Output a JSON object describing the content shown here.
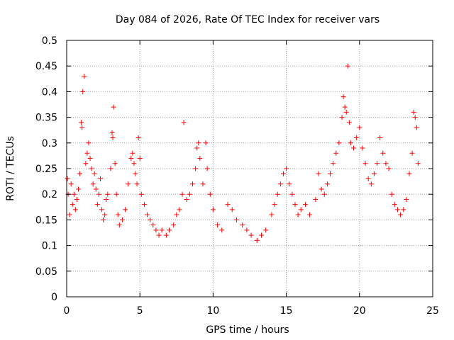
{
  "chart_data": {
    "type": "scatter",
    "title": "Day 084 of 2026, Rate Of TEC Index for receiver vars",
    "xlabel": "GPS time / hours",
    "ylabel": "ROTI / TECUs",
    "xlim": [
      0,
      25
    ],
    "ylim": [
      0,
      0.5
    ],
    "x_ticks": [
      "0",
      "5",
      "10",
      "15",
      "20",
      "25"
    ],
    "y_ticks": [
      "0",
      "0.05",
      "0.1",
      "0.15",
      "0.2",
      "0.25",
      "0.3",
      "0.35",
      "0.4",
      "0.45",
      "0.5"
    ],
    "grid": true,
    "marker": "+",
    "color": "#ff0000",
    "series": [
      {
        "points": [
          [
            0.05,
            0.23
          ],
          [
            0.1,
            0.2
          ],
          [
            0.2,
            0.16
          ],
          [
            0.3,
            0.22
          ],
          [
            0.4,
            0.18
          ],
          [
            0.5,
            0.2
          ],
          [
            0.6,
            0.17
          ],
          [
            0.7,
            0.19
          ],
          [
            0.8,
            0.21
          ],
          [
            0.9,
            0.24
          ],
          [
            1.0,
            0.34
          ],
          [
            1.05,
            0.33
          ],
          [
            1.1,
            0.4
          ],
          [
            1.2,
            0.43
          ],
          [
            1.3,
            0.26
          ],
          [
            1.4,
            0.28
          ],
          [
            1.5,
            0.3
          ],
          [
            1.6,
            0.27
          ],
          [
            1.7,
            0.25
          ],
          [
            1.8,
            0.22
          ],
          [
            1.9,
            0.24
          ],
          [
            2.0,
            0.21
          ],
          [
            2.1,
            0.18
          ],
          [
            2.2,
            0.2
          ],
          [
            2.3,
            0.23
          ],
          [
            2.4,
            0.17
          ],
          [
            2.5,
            0.15
          ],
          [
            2.6,
            0.16
          ],
          [
            2.7,
            0.19
          ],
          [
            2.8,
            0.2
          ],
          [
            3.0,
            0.25
          ],
          [
            3.1,
            0.32
          ],
          [
            3.15,
            0.31
          ],
          [
            3.2,
            0.37
          ],
          [
            3.3,
            0.26
          ],
          [
            3.4,
            0.2
          ],
          [
            3.5,
            0.16
          ],
          [
            3.6,
            0.14
          ],
          [
            3.8,
            0.15
          ],
          [
            4.0,
            0.17
          ],
          [
            4.2,
            0.22
          ],
          [
            4.4,
            0.27
          ],
          [
            4.5,
            0.28
          ],
          [
            4.6,
            0.26
          ],
          [
            4.7,
            0.24
          ],
          [
            4.8,
            0.22
          ],
          [
            4.9,
            0.31
          ],
          [
            5.0,
            0.27
          ],
          [
            5.1,
            0.2
          ],
          [
            5.3,
            0.18
          ],
          [
            5.5,
            0.16
          ],
          [
            5.7,
            0.15
          ],
          [
            5.9,
            0.14
          ],
          [
            6.1,
            0.13
          ],
          [
            6.3,
            0.12
          ],
          [
            6.5,
            0.13
          ],
          [
            6.8,
            0.12
          ],
          [
            7.0,
            0.13
          ],
          [
            7.3,
            0.14
          ],
          [
            7.5,
            0.16
          ],
          [
            7.7,
            0.17
          ],
          [
            7.9,
            0.2
          ],
          [
            8.0,
            0.34
          ],
          [
            8.2,
            0.19
          ],
          [
            8.4,
            0.2
          ],
          [
            8.6,
            0.22
          ],
          [
            8.8,
            0.25
          ],
          [
            8.9,
            0.29
          ],
          [
            9.0,
            0.3
          ],
          [
            9.1,
            0.27
          ],
          [
            9.3,
            0.22
          ],
          [
            9.5,
            0.3
          ],
          [
            9.6,
            0.25
          ],
          [
            9.8,
            0.2
          ],
          [
            10.0,
            0.17
          ],
          [
            10.3,
            0.14
          ],
          [
            10.6,
            0.13
          ],
          [
            11.0,
            0.18
          ],
          [
            11.3,
            0.17
          ],
          [
            11.6,
            0.15
          ],
          [
            12.0,
            0.14
          ],
          [
            12.3,
            0.13
          ],
          [
            12.6,
            0.12
          ],
          [
            13.0,
            0.11
          ],
          [
            13.3,
            0.12
          ],
          [
            13.6,
            0.13
          ],
          [
            14.0,
            0.16
          ],
          [
            14.2,
            0.18
          ],
          [
            14.4,
            0.2
          ],
          [
            14.6,
            0.22
          ],
          [
            14.8,
            0.24
          ],
          [
            15.0,
            0.25
          ],
          [
            15.2,
            0.22
          ],
          [
            15.4,
            0.2
          ],
          [
            15.6,
            0.18
          ],
          [
            15.8,
            0.16
          ],
          [
            16.0,
            0.17
          ],
          [
            16.3,
            0.18
          ],
          [
            16.6,
            0.16
          ],
          [
            17.0,
            0.19
          ],
          [
            17.2,
            0.24
          ],
          [
            17.4,
            0.21
          ],
          [
            17.6,
            0.2
          ],
          [
            17.8,
            0.22
          ],
          [
            18.0,
            0.24
          ],
          [
            18.2,
            0.26
          ],
          [
            18.4,
            0.28
          ],
          [
            18.6,
            0.3
          ],
          [
            18.8,
            0.35
          ],
          [
            18.9,
            0.39
          ],
          [
            19.0,
            0.37
          ],
          [
            19.1,
            0.36
          ],
          [
            19.2,
            0.45
          ],
          [
            19.3,
            0.34
          ],
          [
            19.4,
            0.3
          ],
          [
            19.6,
            0.29
          ],
          [
            19.8,
            0.31
          ],
          [
            20.0,
            0.33
          ],
          [
            20.2,
            0.29
          ],
          [
            20.4,
            0.26
          ],
          [
            20.6,
            0.23
          ],
          [
            20.8,
            0.22
          ],
          [
            21.0,
            0.24
          ],
          [
            21.2,
            0.26
          ],
          [
            21.4,
            0.31
          ],
          [
            21.6,
            0.28
          ],
          [
            21.8,
            0.26
          ],
          [
            22.0,
            0.25
          ],
          [
            22.2,
            0.2
          ],
          [
            22.4,
            0.18
          ],
          [
            22.6,
            0.17
          ],
          [
            22.8,
            0.16
          ],
          [
            23.0,
            0.17
          ],
          [
            23.2,
            0.19
          ],
          [
            23.4,
            0.24
          ],
          [
            23.6,
            0.28
          ],
          [
            23.7,
            0.36
          ],
          [
            23.8,
            0.35
          ],
          [
            23.9,
            0.33
          ],
          [
            24.0,
            0.26
          ]
        ]
      }
    ]
  }
}
